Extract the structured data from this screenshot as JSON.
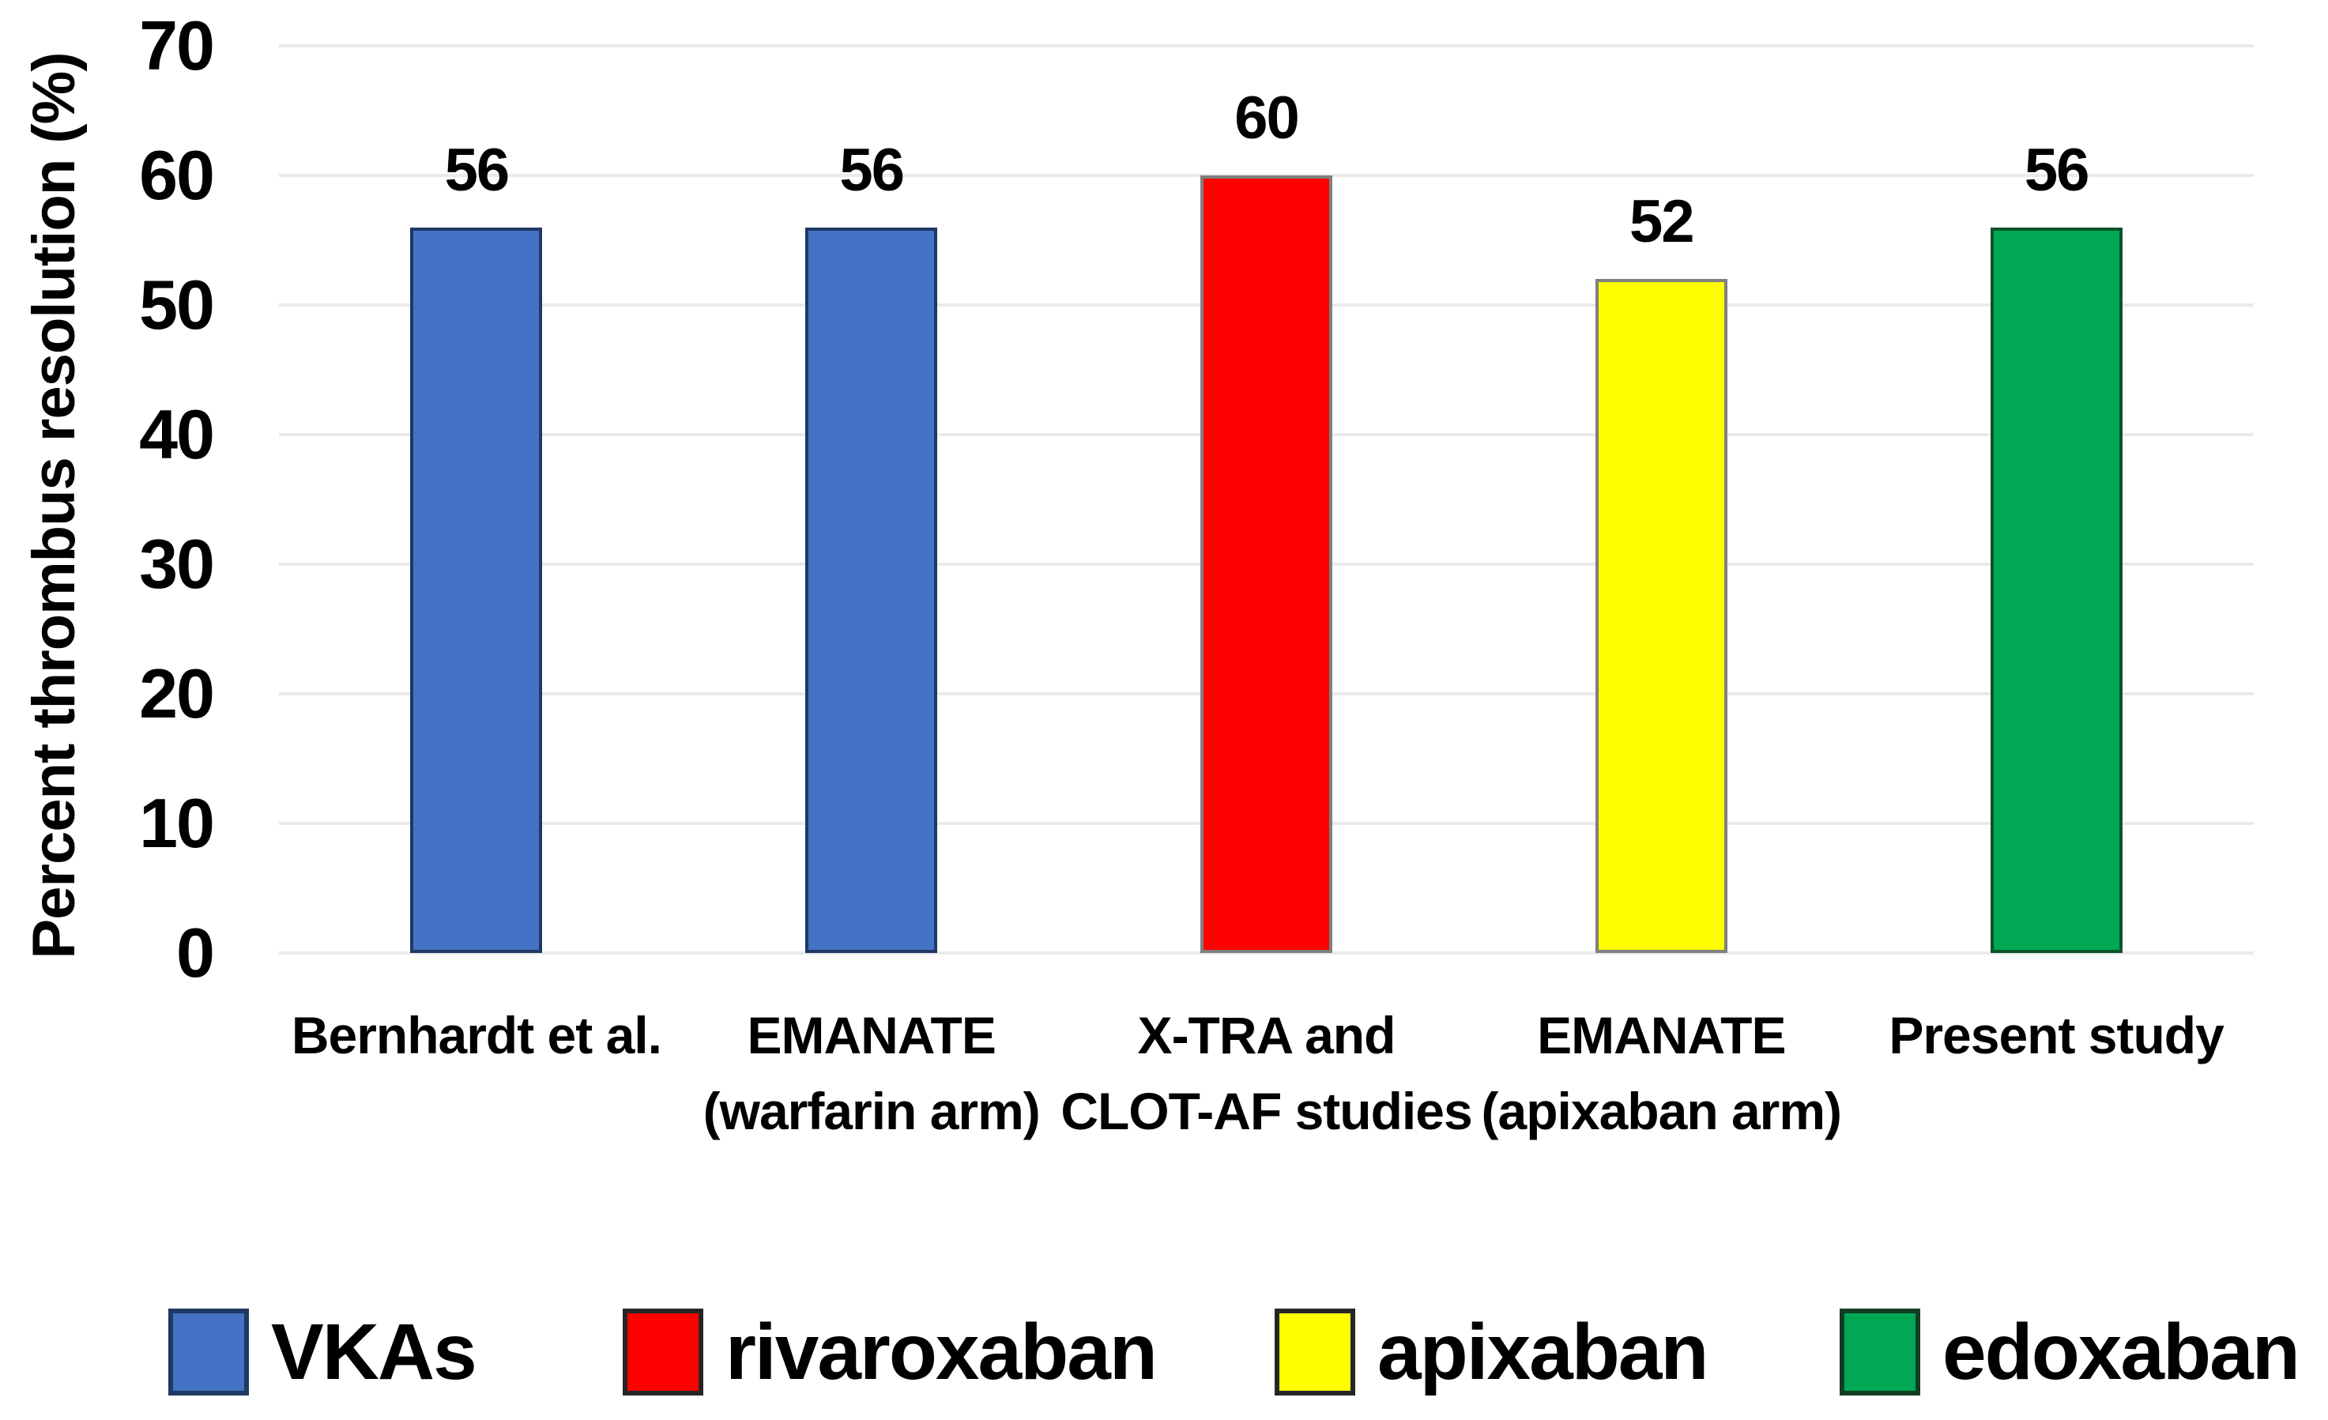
{
  "chart_data": {
    "type": "bar",
    "title": "",
    "xlabel": "",
    "ylabel": "Percent thrombus resolution (%)",
    "ylim": [
      0,
      70
    ],
    "yticks": [
      0,
      10,
      20,
      30,
      40,
      50,
      60,
      70
    ],
    "grid": true,
    "legend_position": "bottom",
    "categories": [
      "Bernhardt et al.",
      "EMANATE\n(warfarin arm)",
      "X-TRA and\nCLOT-AF studies",
      "EMANATE\n(apixaban arm)",
      "Present study"
    ],
    "values": [
      56,
      56,
      60,
      52,
      56
    ],
    "value_labels": [
      "56",
      "56",
      "60",
      "52",
      "56"
    ],
    "bar_fill_colors": [
      "#4472C4",
      "#4472C4",
      "#FF0000",
      "#FFFF00",
      "#00A854"
    ],
    "bar_border_colors": [
      "#1F3864",
      "#1F3864",
      "#808080",
      "#808080",
      "#0B5329"
    ],
    "legend": [
      {
        "label": "VKAs",
        "color": "#4472C4",
        "border": "#1F3864"
      },
      {
        "label": "rivaroxaban",
        "color": "#FF0000",
        "border": "#262626"
      },
      {
        "label": "apixaban",
        "color": "#FFFF00",
        "border": "#262626"
      },
      {
        "label": "edoxaban",
        "color": "#00A854",
        "border": "#123D23"
      }
    ]
  },
  "colors": {
    "background": "#FFFFFF",
    "gridline": "#EAEAEA",
    "text": "#000000"
  }
}
